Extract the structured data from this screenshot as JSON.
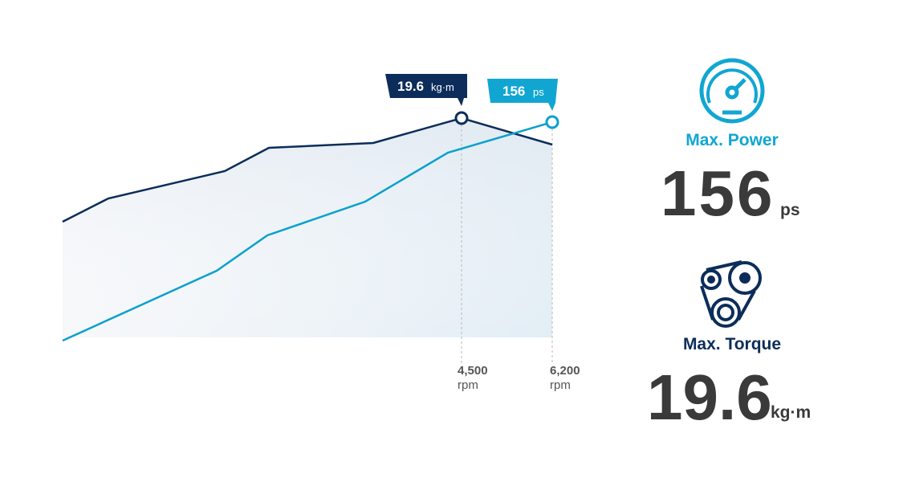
{
  "chart": {
    "torque_callout": {
      "value": "19.6",
      "unit": "kg·m"
    },
    "power_callout": {
      "value": "156",
      "unit": "ps"
    },
    "rpm_labels": [
      {
        "value": "4,500",
        "unit": "rpm"
      },
      {
        "value": "6,200",
        "unit": "rpm"
      }
    ]
  },
  "stats": [
    {
      "label": "Max. Power",
      "value": "156",
      "unit": "ps"
    },
    {
      "label": "Max. Torque",
      "value": "19.6",
      "unit": "kg·m"
    }
  ]
}
